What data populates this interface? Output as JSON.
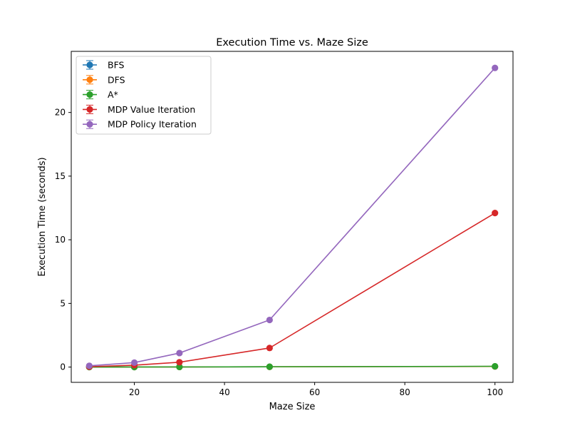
{
  "chart_data": {
    "type": "line",
    "title": "Execution Time vs. Maze Size",
    "xlabel": "Maze Size",
    "ylabel": "Execution Time (seconds)",
    "xlim": [
      6,
      104
    ],
    "ylim": [
      -1.2,
      24.8
    ],
    "xticks": [
      20,
      40,
      60,
      80,
      100
    ],
    "yticks": [
      0,
      5,
      10,
      15,
      20
    ],
    "grid": false,
    "legend_position": "upper-left",
    "x": [
      10,
      20,
      30,
      50,
      100
    ],
    "series": [
      {
        "name": "BFS",
        "color": "#1f77b4",
        "marker": "circle",
        "values": [
          0.002,
          0.005,
          0.01,
          0.02,
          0.05
        ]
      },
      {
        "name": "DFS",
        "color": "#ff7f0e",
        "marker": "circle",
        "values": [
          0.002,
          0.005,
          0.01,
          0.02,
          0.05
        ]
      },
      {
        "name": "A*",
        "color": "#2ca02c",
        "marker": "circle",
        "values": [
          0.003,
          0.006,
          0.012,
          0.025,
          0.06
        ]
      },
      {
        "name": "MDP Value Iteration",
        "color": "#d62728",
        "marker": "circle",
        "values": [
          0.03,
          0.15,
          0.38,
          1.5,
          12.1
        ]
      },
      {
        "name": "MDP Policy Iteration",
        "color": "#9467bd",
        "marker": "circle",
        "values": [
          0.1,
          0.35,
          1.1,
          3.7,
          23.5
        ]
      }
    ]
  }
}
